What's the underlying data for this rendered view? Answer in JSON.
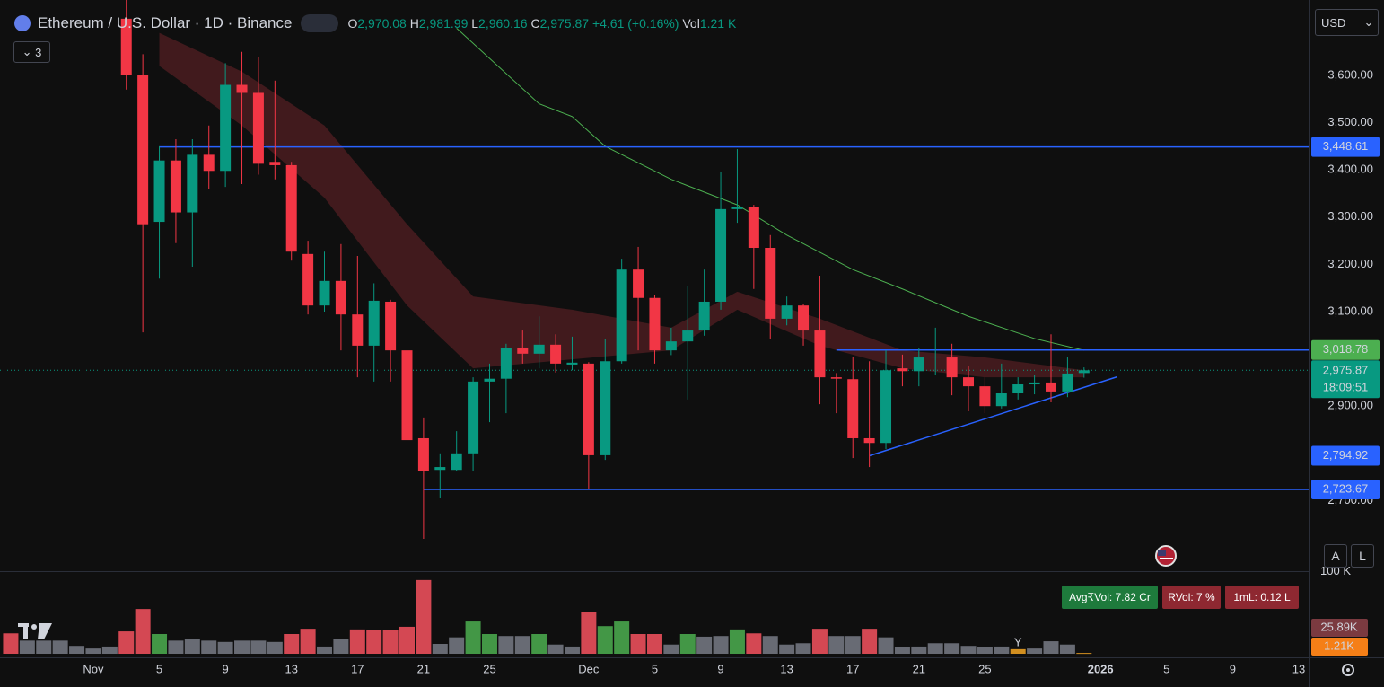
{
  "chart_data": {
    "type": "candlestick",
    "title": "Ethereum / U.S. Dollar · 1D · Binance",
    "header": {
      "o_label": "O",
      "o": "2,970.08",
      "h_label": "H",
      "h": "2,981.99",
      "l_label": "L",
      "l": "2,960.16",
      "c_label": "C",
      "c": "2,975.87",
      "change": "+4.61 (+0.16%)",
      "vol_label": "Vol",
      "vol": "1.21 K",
      "collapsed_count": "3",
      "currency": "USD"
    },
    "x": [
      3,
      4,
      5,
      6,
      7,
      8,
      9,
      10,
      11,
      12,
      13,
      14,
      15,
      16,
      17,
      18,
      19,
      20,
      21,
      22,
      23,
      24,
      25,
      26,
      27,
      28,
      29,
      30,
      31,
      32,
      33,
      34,
      35,
      36,
      37,
      38,
      39,
      40,
      41,
      42,
      43,
      44,
      45,
      46,
      47,
      48,
      49,
      50,
      51,
      52,
      53,
      54,
      55,
      56,
      57,
      58,
      59,
      60,
      61
    ],
    "open": [
      3720,
      3600,
      3290,
      3420,
      3310,
      3432,
      3398,
      3580,
      3563,
      3417,
      3410,
      3222,
      3113,
      3165,
      3094,
      3028,
      3121,
      3018,
      2832,
      2765,
      2765,
      2800,
      2952,
      2958,
      3024,
      3011,
      3030,
      2988,
      2990,
      2796,
      2995,
      3189,
      3129,
      3018,
      3037,
      3060,
      3121,
      3317,
      3321,
      3235,
      3085,
      3113,
      3060,
      2961,
      2957,
      2832,
      2822,
      2980,
      2974,
      3003,
      3003,
      2961,
      2942,
      2900,
      2927,
      2946,
      2950,
      2931,
      2970.08
    ],
    "high": [
      3800,
      3645,
      3450,
      3465,
      3465,
      3494,
      3626,
      3650,
      3640,
      3589,
      3417,
      3250,
      3227,
      3243,
      3218,
      3160,
      3125,
      3056,
      2876,
      2800,
      2847,
      2961,
      2990,
      3032,
      3060,
      3090,
      3052,
      3047,
      2993,
      3041,
      3212,
      3237,
      3136,
      3066,
      3155,
      3189,
      3395,
      3444,
      3326,
      3262,
      3132,
      3117,
      3176,
      2970,
      3005,
      2995,
      3018,
      3009,
      3022,
      3066,
      3032,
      2984,
      2961,
      2990,
      2961,
      2965,
      3052,
      3003,
      2981.99
    ],
    "low": [
      3570,
      3056,
      3170,
      3245,
      3195,
      3360,
      3364,
      3370,
      3390,
      3380,
      3208,
      3094,
      3100,
      3018,
      2961,
      2952,
      2952,
      2819,
      2619,
      2705,
      2762,
      2762,
      2866,
      2885,
      2990,
      2980,
      2971,
      2976,
      2724,
      2786,
      2990,
      3018,
      2990,
      3008,
      2914,
      3049,
      3104,
      3288,
      3148,
      3043,
      3071,
      3028,
      2904,
      2885,
      2790,
      2771,
      2809,
      2942,
      2942,
      2965,
      2923,
      2889,
      2885,
      2895,
      2914,
      2925,
      2908,
      2919,
      2960.16
    ],
    "close": [
      3600,
      3285,
      3420,
      3310,
      3432,
      3398,
      3580,
      3563,
      3413,
      3410,
      3227,
      3113,
      3165,
      3094,
      3028,
      3123,
      3018,
      2828,
      2762,
      2771,
      2800,
      2952,
      2958,
      3024,
      3011,
      3030,
      2990,
      2992,
      2796,
      2995,
      3189,
      3129,
      3018,
      3037,
      3060,
      3121,
      3317,
      3321,
      3235,
      3085,
      3113,
      3060,
      2961,
      2958,
      2832,
      2822,
      2976,
      2974,
      3003,
      3005,
      2961,
      2942,
      2900,
      2927,
      2946,
      2950,
      2931,
      2969,
      2975.87
    ],
    "up_color": "#089981",
    "down_color": "#f23645",
    "xlim": [
      -4.65,
      74.6
    ],
    "xticks": [
      {
        "value": 1,
        "label": "Nov"
      },
      5,
      9,
      13,
      17,
      21,
      25,
      {
        "value": 31,
        "label": "Dec"
      },
      {
        "value": 35,
        "label": "5"
      },
      {
        "value": 39,
        "label": "9"
      },
      {
        "value": 43,
        "label": "13"
      },
      {
        "value": 47,
        "label": "17"
      },
      {
        "value": 51,
        "label": "21"
      },
      {
        "value": 55,
        "label": "25"
      },
      {
        "value": 62,
        "label": "2026"
      },
      {
        "value": 66,
        "label": "5"
      },
      {
        "value": 70,
        "label": "9"
      },
      {
        "value": 74,
        "label": "13"
      }
    ],
    "ylim": [
      2550.6,
      3759.7
    ],
    "yticks": [
      {
        "value": 3600,
        "label": "3,600.00"
      },
      {
        "value": 3500,
        "label": "3,500.00"
      },
      {
        "value": 3400,
        "label": "3,400.00"
      },
      {
        "value": 3300,
        "label": "3,300.00"
      },
      {
        "value": 3200,
        "label": "3,200.00"
      },
      {
        "value": 3100,
        "label": "3,100.00"
      },
      {
        "value": 2900,
        "label": "2,900.00"
      },
      {
        "value": 2700,
        "label": "2,700.00"
      }
    ],
    "price_lines": [
      {
        "value": 3448.61,
        "label": "3,448.61",
        "x_start": 5,
        "color": "#2962ff",
        "label_color": "#2962ff"
      },
      {
        "value": 3018.78,
        "label": "3,018.78",
        "x_start": 46,
        "color": "#2962ff",
        "label_color": "#4caf50"
      },
      {
        "value": 2723.67,
        "label": "2,723.67",
        "x_start": 21,
        "color": "#2962ff",
        "label_color": "#2962ff"
      }
    ],
    "trendline": {
      "x": [
        48,
        63
      ],
      "values": [
        2794.92,
        2962
      ],
      "label": "2,794.92",
      "color": "#2962ff"
    },
    "last_price": {
      "value": 2975.87,
      "label": "2,975.87",
      "countdown": "18:09:51",
      "color": "#089981"
    },
    "ma": {
      "x": [
        23,
        28,
        30,
        32,
        36,
        40,
        43,
        47,
        50,
        54,
        58,
        61
      ],
      "values": [
        3700,
        3540,
        3513,
        3450,
        3380,
        3326,
        3262,
        3189,
        3148,
        3090,
        3043,
        3018
      ],
      "color": "#4caf50"
    },
    "band": {
      "x": [
        5,
        10,
        15,
        20,
        24,
        30,
        36,
        40,
        45,
        50,
        55,
        61
      ],
      "upper": [
        3690,
        3608,
        3494,
        3285,
        3132,
        3104,
        3066,
        3142,
        3085,
        3018,
        3003,
        2976
      ],
      "lower": [
        3620,
        3494,
        3341,
        3113,
        2980,
        2999,
        3018,
        3104,
        3028,
        2980,
        2961,
        2961
      ],
      "color": "#4a1c20"
    },
    "volume": {
      "x": [
        -4,
        -3,
        -2,
        -1,
        0,
        1,
        2,
        3,
        4,
        5,
        6,
        7,
        8,
        9,
        10,
        11,
        12,
        13,
        14,
        15,
        16,
        17,
        18,
        19,
        20,
        21,
        22,
        23,
        24,
        25,
        26,
        27,
        28,
        29,
        30,
        31,
        32,
        33,
        34,
        35,
        36,
        37,
        38,
        39,
        40,
        41,
        42,
        43,
        44,
        45,
        46,
        47,
        48,
        49,
        50,
        51,
        52,
        53,
        54,
        55,
        56,
        57,
        58,
        59,
        60,
        61
      ],
      "values": [
        31,
        20,
        20,
        20,
        12,
        8,
        11,
        34,
        68,
        30,
        20,
        22,
        20,
        18,
        20,
        20,
        18,
        30,
        38,
        11,
        23,
        37,
        36,
        36,
        41,
        112,
        15,
        25,
        49,
        30,
        27,
        27,
        30,
        14,
        11,
        63,
        42,
        49,
        30,
        30,
        14,
        30,
        26,
        27,
        37,
        31,
        27,
        14,
        16,
        38,
        27,
        27,
        38,
        25,
        10,
        11,
        16,
        16,
        12,
        10,
        11,
        7,
        8,
        19,
        14,
        1.21
      ],
      "colors": [
        "#f7525f",
        "#787b86",
        "#787b86",
        "#787b86",
        "#787b86",
        "#787b86",
        "#787b86",
        "#f7525f",
        "#f7525f",
        "#4caf50",
        "#787b86",
        "#787b86",
        "#787b86",
        "#787b86",
        "#787b86",
        "#787b86",
        "#787b86",
        "#f7525f",
        "#f7525f",
        "#787b86",
        "#787b86",
        "#f7525f",
        "#f7525f",
        "#f7525f",
        "#f7525f",
        "#f7525f",
        "#787b86",
        "#787b86",
        "#4caf50",
        "#4caf50",
        "#787b86",
        "#787b86",
        "#4caf50",
        "#787b86",
        "#787b86",
        "#f7525f",
        "#4caf50",
        "#4caf50",
        "#f7525f",
        "#f7525f",
        "#787b86",
        "#4caf50",
        "#787b86",
        "#787b86",
        "#4caf50",
        "#f7525f",
        "#787b86",
        "#787b86",
        "#787b86",
        "#f7525f",
        "#787b86",
        "#787b86",
        "#f7525f",
        "#787b86",
        "#787b86",
        "#787b86",
        "#787b86",
        "#787b86",
        "#787b86",
        "#787b86",
        "#787b86",
        "#f5a623",
        "#787b86",
        "#787b86",
        "#787b86",
        "#f5a623"
      ],
      "ylim": [
        0,
        120
      ],
      "yticks": [
        {
          "value": 100,
          "label": "100 K"
        }
      ],
      "markers": [
        {
          "value": 25.89,
          "label": "25.89K",
          "color": "#7b3a40"
        },
        {
          "value": 1.21,
          "label": "1.21K",
          "color": "#f57f17"
        }
      ],
      "event": {
        "x": 57,
        "label": "Y"
      },
      "indicators": [
        "Avg₹Vol: 7.82 Cr",
        "RVol: 7 %",
        "1mL: 0.12 L"
      ]
    },
    "scale_buttons": [
      "A",
      "L"
    ]
  }
}
